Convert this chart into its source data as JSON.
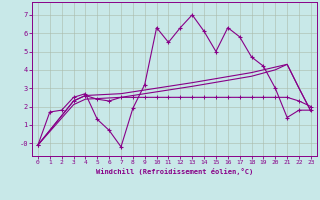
{
  "xlabel": "Windchill (Refroidissement éolien,°C)",
  "background_color": "#c8e8e8",
  "grid_color": "#aabbaa",
  "line_color": "#880088",
  "xlim": [
    -0.5,
    23.5
  ],
  "ylim": [
    -0.7,
    7.7
  ],
  "xticks": [
    0,
    1,
    2,
    3,
    4,
    5,
    6,
    7,
    8,
    9,
    10,
    11,
    12,
    13,
    14,
    15,
    16,
    17,
    18,
    19,
    20,
    21,
    22,
    23
  ],
  "yticks": [
    0,
    1,
    2,
    3,
    4,
    5,
    6,
    7
  ],
  "ytick_labels": [
    "-0",
    "1",
    "2",
    "3",
    "4",
    "5",
    "6",
    "7"
  ],
  "line_main": {
    "x": [
      0,
      1,
      2,
      3,
      4,
      5,
      6,
      7,
      8,
      9,
      10,
      11,
      12,
      13,
      14,
      15,
      16,
      17,
      18,
      19,
      20,
      21,
      22,
      23
    ],
    "y": [
      -0.1,
      1.7,
      1.8,
      2.5,
      2.7,
      1.3,
      0.7,
      -0.2,
      1.9,
      3.2,
      6.3,
      5.5,
      6.3,
      7.0,
      6.1,
      5.0,
      6.3,
      5.8,
      4.7,
      4.2,
      3.0,
      1.4,
      1.8,
      1.8
    ]
  },
  "line_flat": {
    "x": [
      0,
      3,
      4,
      5,
      6,
      7,
      8,
      9,
      10,
      11,
      12,
      13,
      14,
      15,
      16,
      17,
      18,
      19,
      20,
      21,
      22,
      23
    ],
    "y": [
      -0.1,
      2.3,
      2.6,
      2.4,
      2.3,
      2.5,
      2.5,
      2.5,
      2.5,
      2.5,
      2.5,
      2.5,
      2.5,
      2.5,
      2.5,
      2.5,
      2.5,
      2.5,
      2.5,
      2.5,
      2.3,
      2.0
    ]
  },
  "line_trend1": {
    "x": [
      0,
      3,
      4,
      7,
      10,
      13,
      18,
      20,
      21,
      22,
      23
    ],
    "y": [
      -0.1,
      2.3,
      2.6,
      2.7,
      3.0,
      3.3,
      3.85,
      4.15,
      4.3,
      3.0,
      1.75
    ]
  },
  "line_trend2": {
    "x": [
      0,
      3,
      4,
      7,
      10,
      13,
      18,
      20,
      21,
      22,
      23
    ],
    "y": [
      -0.1,
      2.1,
      2.4,
      2.5,
      2.8,
      3.1,
      3.65,
      4.0,
      4.3,
      3.0,
      1.75
    ]
  }
}
